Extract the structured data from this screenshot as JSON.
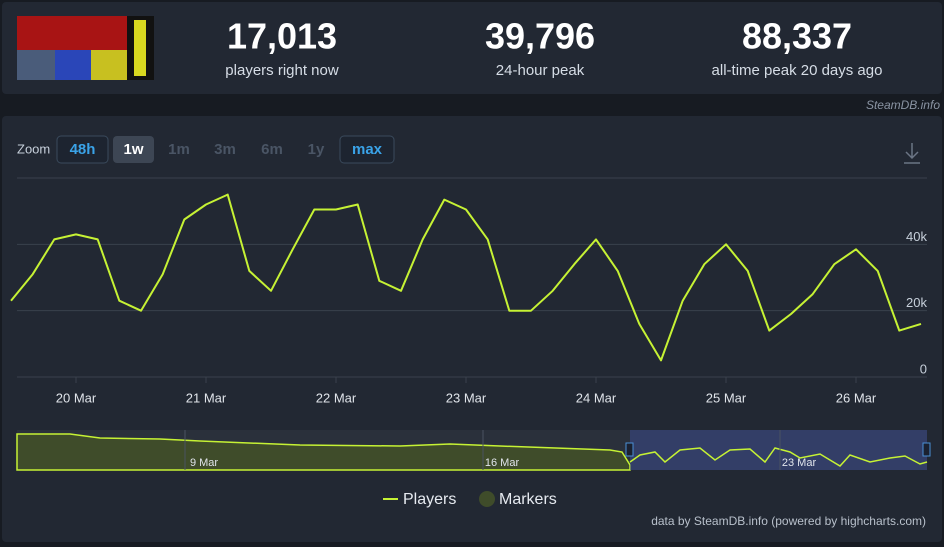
{
  "header": {
    "stats": [
      {
        "value": "17,013",
        "label": "players right now"
      },
      {
        "value": "39,796",
        "label": "24-hour peak"
      },
      {
        "value": "88,337",
        "label": "all-time peak 20 days ago"
      }
    ],
    "source": "SteamDB.info"
  },
  "zoom": {
    "label": "Zoom",
    "options": [
      "48h",
      "1w",
      "1m",
      "3m",
      "6m",
      "1y",
      "max"
    ]
  },
  "navigator": {
    "labels": [
      "9 Mar",
      "16 Mar",
      "23 Mar"
    ]
  },
  "chart_data": {
    "type": "line",
    "categories": [
      null,
      null,
      null,
      "20 Mar",
      null,
      null,
      null,
      null,
      null,
      "21 Mar",
      null,
      null,
      null,
      null,
      null,
      "22 Mar",
      null,
      null,
      null,
      null,
      null,
      "23 Mar",
      null,
      null,
      null,
      null,
      null,
      "24 Mar",
      null,
      null,
      null,
      null,
      null,
      "25 Mar",
      null,
      null,
      null,
      null,
      null,
      "26 Mar",
      null,
      null,
      null
    ],
    "series": [
      {
        "name": "Players",
        "color": "#c6f234",
        "values": [
          23000,
          31000,
          41500,
          43000,
          41500,
          23000,
          20000,
          31000,
          47500,
          52000,
          55000,
          32000,
          26000,
          38500,
          50500,
          50500,
          52000,
          29000,
          26000,
          41500,
          53500,
          50500,
          41500,
          20000,
          20000,
          26000,
          34000,
          41500,
          32000,
          16000,
          5000,
          23000,
          34000,
          40000,
          32000,
          14000,
          19000,
          25000,
          34000,
          38500,
          32000,
          14000,
          16000
        ]
      }
    ],
    "ylim": [
      0,
      60000
    ],
    "yticks": [
      {
        "value": 0,
        "label": "0"
      },
      {
        "value": 20000,
        "label": "20k"
      },
      {
        "value": 40000,
        "label": "40k"
      }
    ],
    "grid": true,
    "markers_label": "Markers",
    "credit": "data by SteamDB.info (powered by highcharts.com)"
  }
}
